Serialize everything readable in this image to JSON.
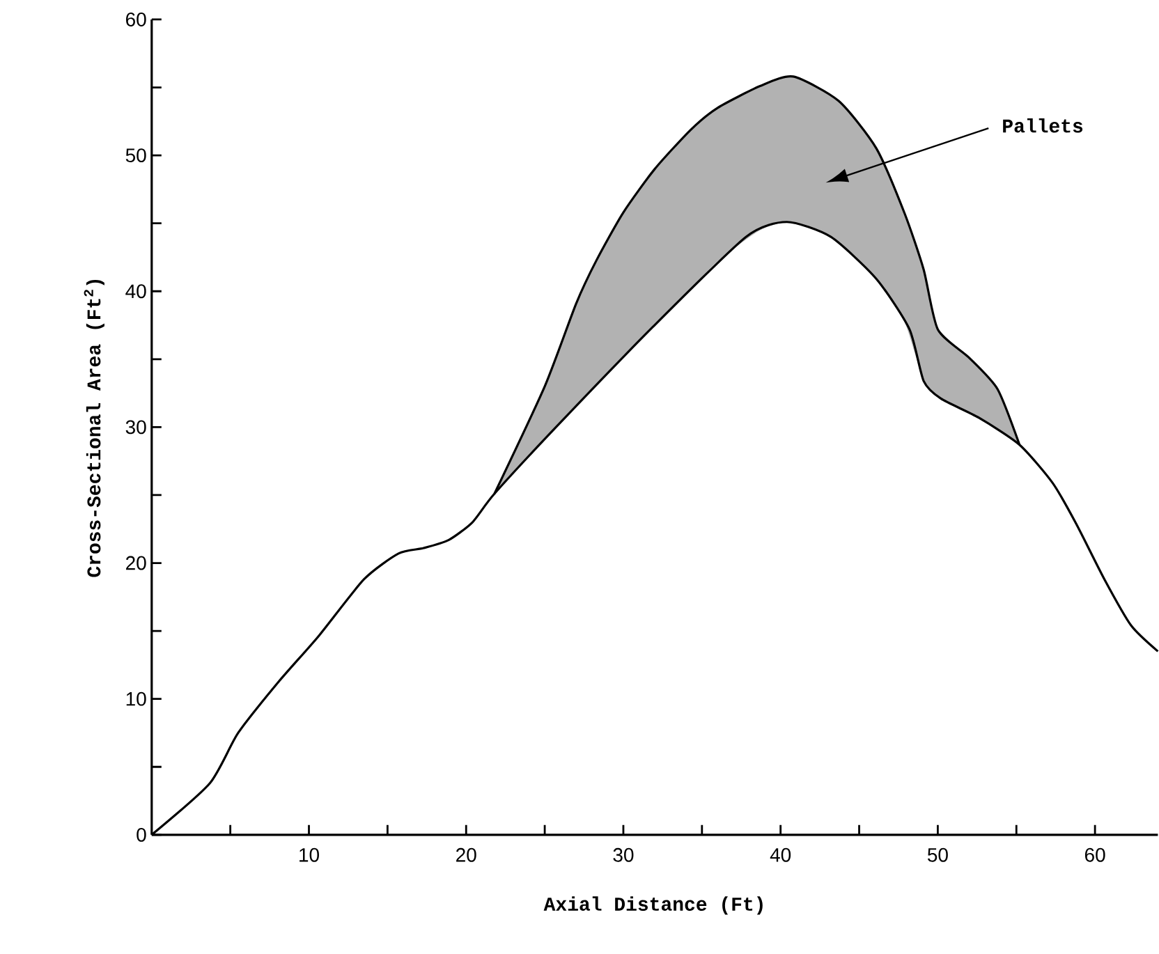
{
  "chart_data": {
    "type": "line",
    "xlabel": "Axial Distance (Ft)",
    "ylabel": "Cross-Sectional Area (Ft$^{2}$)",
    "xlim": [
      0,
      64
    ],
    "ylim": [
      0,
      60
    ],
    "xticks": [
      {
        "value": 5,
        "label": null
      },
      10,
      {
        "value": 15,
        "label": null
      },
      20,
      {
        "value": 25,
        "label": null
      },
      30,
      {
        "value": 35,
        "label": null
      },
      40,
      {
        "value": 45,
        "label": null
      },
      50,
      {
        "value": 55,
        "label": null
      },
      60
    ],
    "yticks": [
      0,
      {
        "value": 5,
        "label": null
      },
      10,
      {
        "value": 15,
        "label": null
      },
      20,
      {
        "value": 25,
        "label": null
      },
      30,
      {
        "value": 35,
        "label": null
      },
      40,
      {
        "value": 45,
        "label": null
      },
      50,
      {
        "value": 55,
        "label": null
      },
      60
    ],
    "marker": "none",
    "line_style": "solid",
    "series": [
      {
        "color": "#000000",
        "x": [
          0,
          3.7,
          5.5,
          8.1,
          10.6,
          13.5,
          15.7,
          17.3,
          18.9,
          20.4,
          21.8,
          25.8,
          31.9,
          37.8,
          40.4,
          43.2,
          46.1,
          48.2,
          49.1,
          50.2,
          52.6,
          55.2,
          57.3,
          58.8,
          60.6,
          62.3,
          64
        ],
        "values": [
          0,
          3.8,
          7.5,
          11.3,
          14.6,
          18.8,
          20.7,
          21.1,
          21.7,
          23.0,
          25.1,
          30.1,
          37.4,
          44.0,
          45.1,
          44.0,
          40.9,
          37.2,
          33.4,
          32.1,
          30.7,
          28.7,
          25.9,
          22.9,
          18.8,
          15.4,
          13.5
        ]
      },
      {
        "color": "#000000",
        "x": [
          21.8,
          25,
          27,
          28.3,
          30,
          32,
          34.3,
          36,
          38.7,
          40.8,
          43.7,
          46.1,
          47.9,
          49.1,
          50,
          52,
          53.8,
          55.2
        ],
        "values": [
          25.1,
          33.0,
          39.1,
          42.3,
          45.8,
          49.0,
          51.9,
          53.5,
          55.1,
          55.8,
          54.0,
          50.5,
          45.7,
          41.6,
          37.2,
          35.1,
          32.8,
          28.7
        ],
        "upper": [
          25.1,
          33.0,
          39.1,
          42.3,
          45.8,
          49.0,
          51.9,
          53.5,
          55.1,
          55.8,
          54.0,
          50.5,
          45.7,
          41.6,
          37.2,
          35.1,
          32.8,
          28.7
        ],
        "lower": [
          25.1,
          29.1,
          31.5,
          33.2,
          35.2,
          37.5,
          40.2,
          42.2,
          44.5,
          45.1,
          43.6,
          40.9,
          37.7,
          33.4,
          32.3,
          31.0,
          29.8,
          28.7
        ]
      }
    ],
    "annotations": [
      "Pallets"
    ]
  }
}
